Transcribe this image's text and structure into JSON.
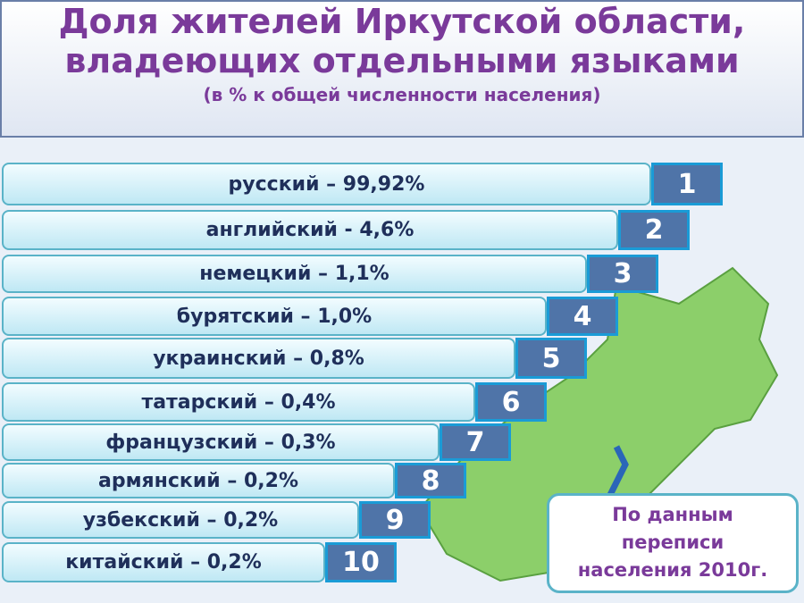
{
  "header": {
    "title_lines": [
      "Доля жителей Иркутской области,",
      "владеющих отдельными языками"
    ],
    "subtitle": "(в % к общей численности населения)"
  },
  "items": [
    {
      "label": "русский – 99,92%",
      "rank": 1
    },
    {
      "label": "английский - 4,6%",
      "rank": 2
    },
    {
      "label": "немецкий – 1,1%",
      "rank": 3
    },
    {
      "label": "бурятский – 1,0%",
      "rank": 4
    },
    {
      "label": "украинский – 0,8%",
      "rank": 5
    },
    {
      "label": "татарский – 0,4%",
      "rank": 6
    },
    {
      "label": "французский – 0,3%",
      "rank": 7
    },
    {
      "label": "армянский – 0,2%",
      "rank": 8
    },
    {
      "label": "узбекский – 0,2%",
      "rank": 9
    },
    {
      "label": "китайский – 0,2%",
      "rank": 10
    }
  ],
  "note": [
    "По данным",
    "переписи",
    "населения 2010г."
  ]
}
